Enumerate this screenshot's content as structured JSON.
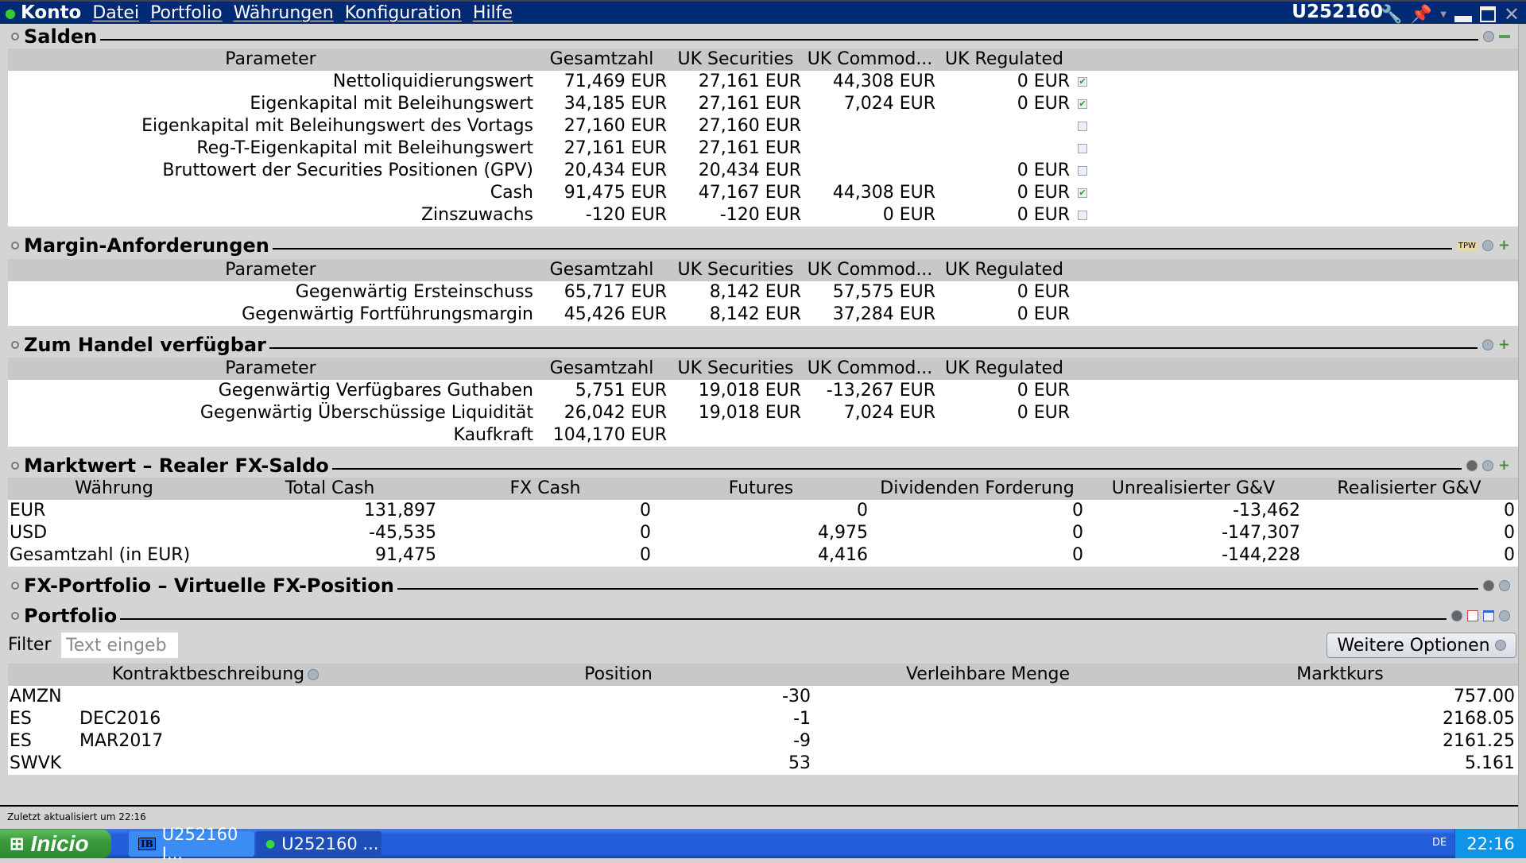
{
  "titlebar": {
    "app": "Konto",
    "menus": [
      "Datei",
      "Portfolio",
      "Währungen",
      "Konfiguration",
      "Hilfe"
    ],
    "account": "U252160"
  },
  "colors": {
    "titlebar": "#002a74",
    "header_row": "#c8c8c8",
    "check": "#2aa52a"
  },
  "salden": {
    "title": "Salden",
    "headers": [
      "Parameter",
      "Gesamtzahl",
      "UK Securities",
      "UK Commod...",
      "UK Regulated"
    ],
    "rows": [
      {
        "cells": [
          "Nettoliquidierungswert",
          "71,469 EUR",
          "27,161 EUR",
          "44,308 EUR",
          "0 EUR"
        ],
        "checked": true
      },
      {
        "cells": [
          "Eigenkapital mit Beleihungswert",
          "34,185 EUR",
          "27,161 EUR",
          "7,024 EUR",
          "0 EUR"
        ],
        "checked": true
      },
      {
        "cells": [
          "Eigenkapital mit Beleihungswert des Vortags",
          "27,160 EUR",
          "27,160 EUR",
          "",
          ""
        ],
        "checked": false
      },
      {
        "cells": [
          "Reg-T-Eigenkapital mit Beleihungswert",
          "27,161 EUR",
          "27,161 EUR",
          "",
          ""
        ],
        "checked": false
      },
      {
        "cells": [
          "Bruttowert der Securities Positionen (GPV)",
          "20,434 EUR",
          "20,434 EUR",
          "",
          "0 EUR"
        ],
        "checked": false
      },
      {
        "cells": [
          "Cash",
          "91,475 EUR",
          "47,167 EUR",
          "44,308 EUR",
          "0 EUR"
        ],
        "checked": true
      },
      {
        "cells": [
          "Zinszuwachs",
          "-120 EUR",
          "-120 EUR",
          "0 EUR",
          "0 EUR"
        ],
        "checked": false
      }
    ]
  },
  "margin": {
    "title": "Margin-Anforderungen",
    "headers": [
      "Parameter",
      "Gesamtzahl",
      "UK Securities",
      "UK Commod...",
      "UK Regulated"
    ],
    "rows": [
      {
        "cells": [
          "Gegenwärtig Ersteinschuss",
          "65,717 EUR",
          "8,142 EUR",
          "57,575 EUR",
          "0 EUR"
        ]
      },
      {
        "cells": [
          "Gegenwärtig Fortführungsmargin",
          "45,426 EUR",
          "8,142 EUR",
          "37,284 EUR",
          "0 EUR"
        ]
      }
    ]
  },
  "handel": {
    "title": "Zum Handel verfügbar",
    "headers": [
      "Parameter",
      "Gesamtzahl",
      "UK Securities",
      "UK Commod...",
      "UK Regulated"
    ],
    "rows": [
      {
        "cells": [
          "Gegenwärtig Verfügbares Guthaben",
          "5,751 EUR",
          "19,018 EUR",
          "-13,267 EUR",
          "0 EUR"
        ]
      },
      {
        "cells": [
          "Gegenwärtig Überschüssige Liquidität",
          "26,042 EUR",
          "19,018 EUR",
          "7,024 EUR",
          "0 EUR"
        ]
      },
      {
        "cells": [
          "Kaufkraft",
          "104,170 EUR",
          "",
          "",
          ""
        ]
      }
    ]
  },
  "marktwert": {
    "title": "Marktwert – Realer FX-Saldo",
    "headers": [
      "Währung",
      "Total Cash",
      "FX Cash",
      "Futures",
      "Dividenden Forderung",
      "Unrealisierter G&V",
      "Realisierter G&V"
    ],
    "rows": [
      {
        "cells": [
          "EUR",
          "131,897",
          "0",
          "0",
          "0",
          "-13,462",
          "0"
        ]
      },
      {
        "cells": [
          "USD",
          "-45,535",
          "0",
          "4,975",
          "0",
          "-147,307",
          "0"
        ]
      },
      {
        "cells": [
          "Gesamtzahl (in EUR)",
          "91,475",
          "0",
          "4,416",
          "0",
          "-144,228",
          "0"
        ]
      }
    ]
  },
  "fxportfolio": {
    "title": "FX-Portfolio – Virtuelle FX-Position"
  },
  "portfolio": {
    "title": "Portfolio",
    "filter_label": "Filter",
    "filter_placeholder": "Text eingeb",
    "more_options": "Weitere Optionen",
    "headers": [
      "Kontraktbeschreibung",
      "Position",
      "Verleihbare Menge",
      "Marktkurs"
    ],
    "rows": [
      {
        "symbol": "AMZN",
        "expiry": "",
        "position": "-30",
        "lendable": "",
        "price": "757.00"
      },
      {
        "symbol": "ES",
        "expiry": "DEC2016",
        "position": "-1",
        "lendable": "",
        "price": "2168.05"
      },
      {
        "symbol": "ES",
        "expiry": "MAR2017",
        "position": "-9",
        "lendable": "",
        "price": "2161.25"
      },
      {
        "symbol": "SWVK",
        "expiry": "",
        "position": "53",
        "lendable": "",
        "price": "5.161"
      }
    ]
  },
  "status": "Zuletzt aktualisiert um 22:16",
  "taskbar": {
    "start": "Inicio",
    "tasks": [
      "U252160 I...",
      "U252160 ..."
    ],
    "lang": "DE",
    "clock": "22:16"
  }
}
